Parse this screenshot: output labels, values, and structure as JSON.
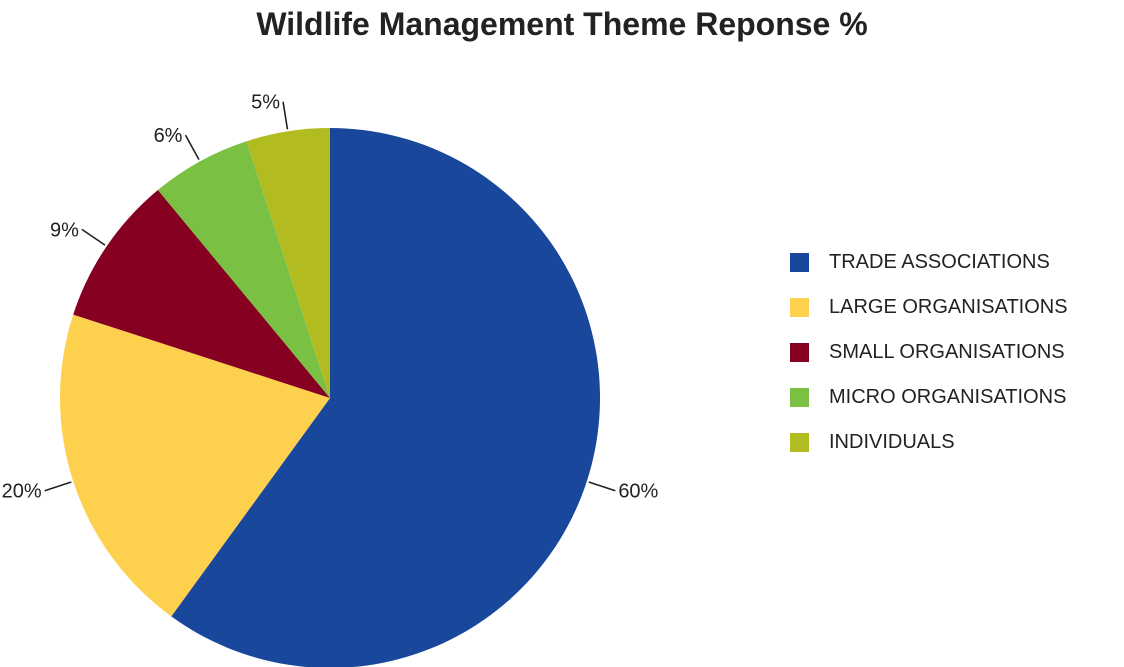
{
  "chart_data": {
    "type": "pie",
    "title": "Wildlife Management Theme Reponse %",
    "slices": [
      {
        "name": "TRADE ASSOCIATIONS",
        "value": 60,
        "label": "60%",
        "color": "#19479B"
      },
      {
        "name": "LARGE ORGANISATIONS",
        "value": 20,
        "label": "20%",
        "color": "#FDD04E"
      },
      {
        "name": "SMALL ORGANISATIONS",
        "value": 9,
        "label": "9%",
        "color": "#860022"
      },
      {
        "name": "MICRO ORGANISATIONS",
        "value": 6,
        "label": "6%",
        "color": "#7AC143"
      },
      {
        "name": "INDIVIDUALS",
        "value": 5,
        "label": "5%",
        "color": "#B2BC21"
      }
    ],
    "start_angle": "12 o'clock",
    "direction": "clockwise",
    "legend": "right"
  }
}
